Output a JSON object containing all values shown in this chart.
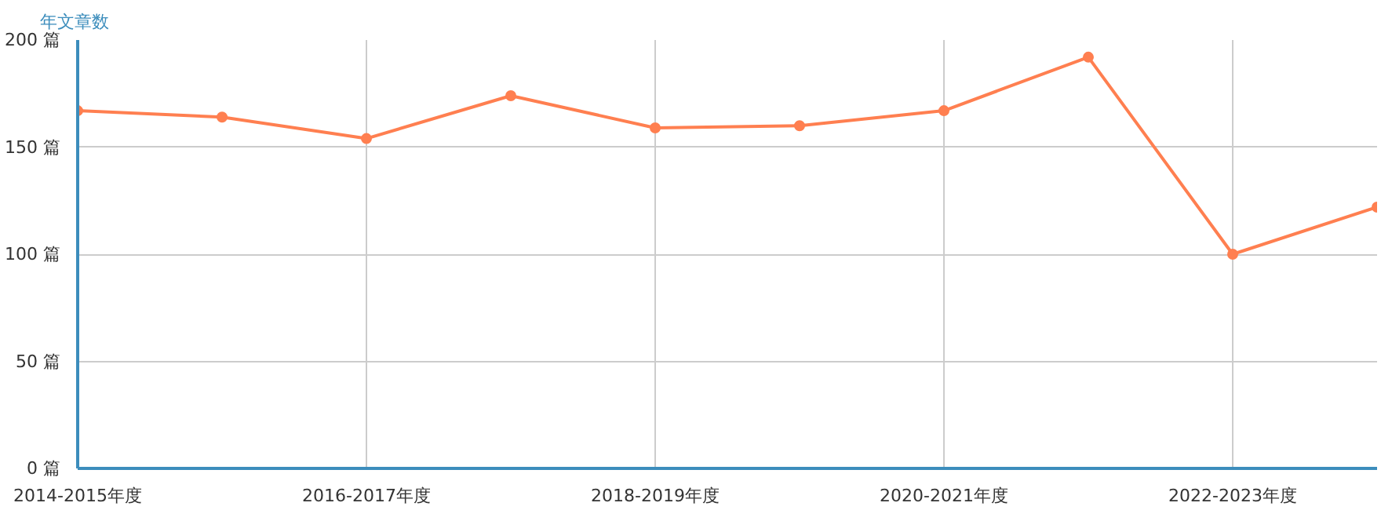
{
  "chart_data": {
    "type": "line",
    "ylabel": "年文章数",
    "categories": [
      "2014-2015年度",
      null,
      "2016-2017年度",
      null,
      "2018-2019年度",
      null,
      "2020-2021年度",
      null,
      "2022-2023年度",
      null
    ],
    "series": [
      {
        "color": "#ff7f50",
        "values": [
          167,
          164,
          154,
          174,
          159,
          160,
          167,
          192,
          100,
          122
        ]
      }
    ],
    "ylim": [
      0,
      200
    ],
    "yticks": [
      {
        "value": 0,
        "label": "0 篇"
      },
      {
        "value": 50,
        "label": "50 篇"
      },
      {
        "value": 100,
        "label": "100 篇"
      },
      {
        "value": 150,
        "label": "150 篇"
      },
      {
        "value": 200,
        "label": "200 篇"
      }
    ],
    "grid": true,
    "marker": "circle",
    "line_style": "solid"
  }
}
